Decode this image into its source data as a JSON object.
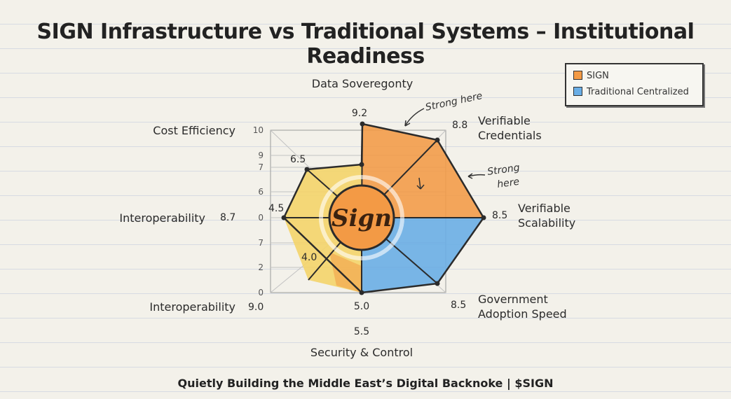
{
  "title": "SIGN Infrastructure vs Traditional Systems – Institutional Readiness",
  "footer": "Quietly Building the Middle East’s Digital Backnoke | $SIGN",
  "logo_text": "Sign",
  "colors": {
    "sign": "#f39a45",
    "traditional": "#6aaee6",
    "yellow": "#f4d46a",
    "line": "#2b2b2b"
  },
  "legend": [
    {
      "label": "SIGN",
      "color": "#f39a45"
    },
    {
      "label": "Traditional Centralized",
      "color": "#6aaee6"
    }
  ],
  "annotations": {
    "strong1": "Strong here",
    "strong2a": "Strong",
    "strong2b": "here"
  },
  "chart_data": {
    "type": "radar",
    "title": "SIGN Infrastructure vs Traditional Systems – Institutional Readiness",
    "scale_ticks": [
      "10",
      "9",
      "7",
      "6",
      "0",
      "7",
      "2",
      "0"
    ],
    "axes": [
      {
        "label": "Data Soveregonty",
        "value": "9.2"
      },
      {
        "label": "Verifiable Credentials",
        "value": "8.8"
      },
      {
        "label": "Verifiable Scalability",
        "value": "8.5"
      },
      {
        "label": "Government Adoption Speed",
        "value": "8.5"
      },
      {
        "label": "Security & Control",
        "value": "5.0",
        "value2": "5.5"
      },
      {
        "label": "Interoperability",
        "value": "9.0",
        "value2": "4.0"
      },
      {
        "label": "Interoperability",
        "value": "8.7",
        "value2": "4.5"
      },
      {
        "label": "Cost Efficiency",
        "value": "6.5"
      }
    ],
    "series": [
      {
        "name": "SIGN"
      },
      {
        "name": "Traditional Centralized"
      }
    ],
    "legend_position": "top-right"
  }
}
